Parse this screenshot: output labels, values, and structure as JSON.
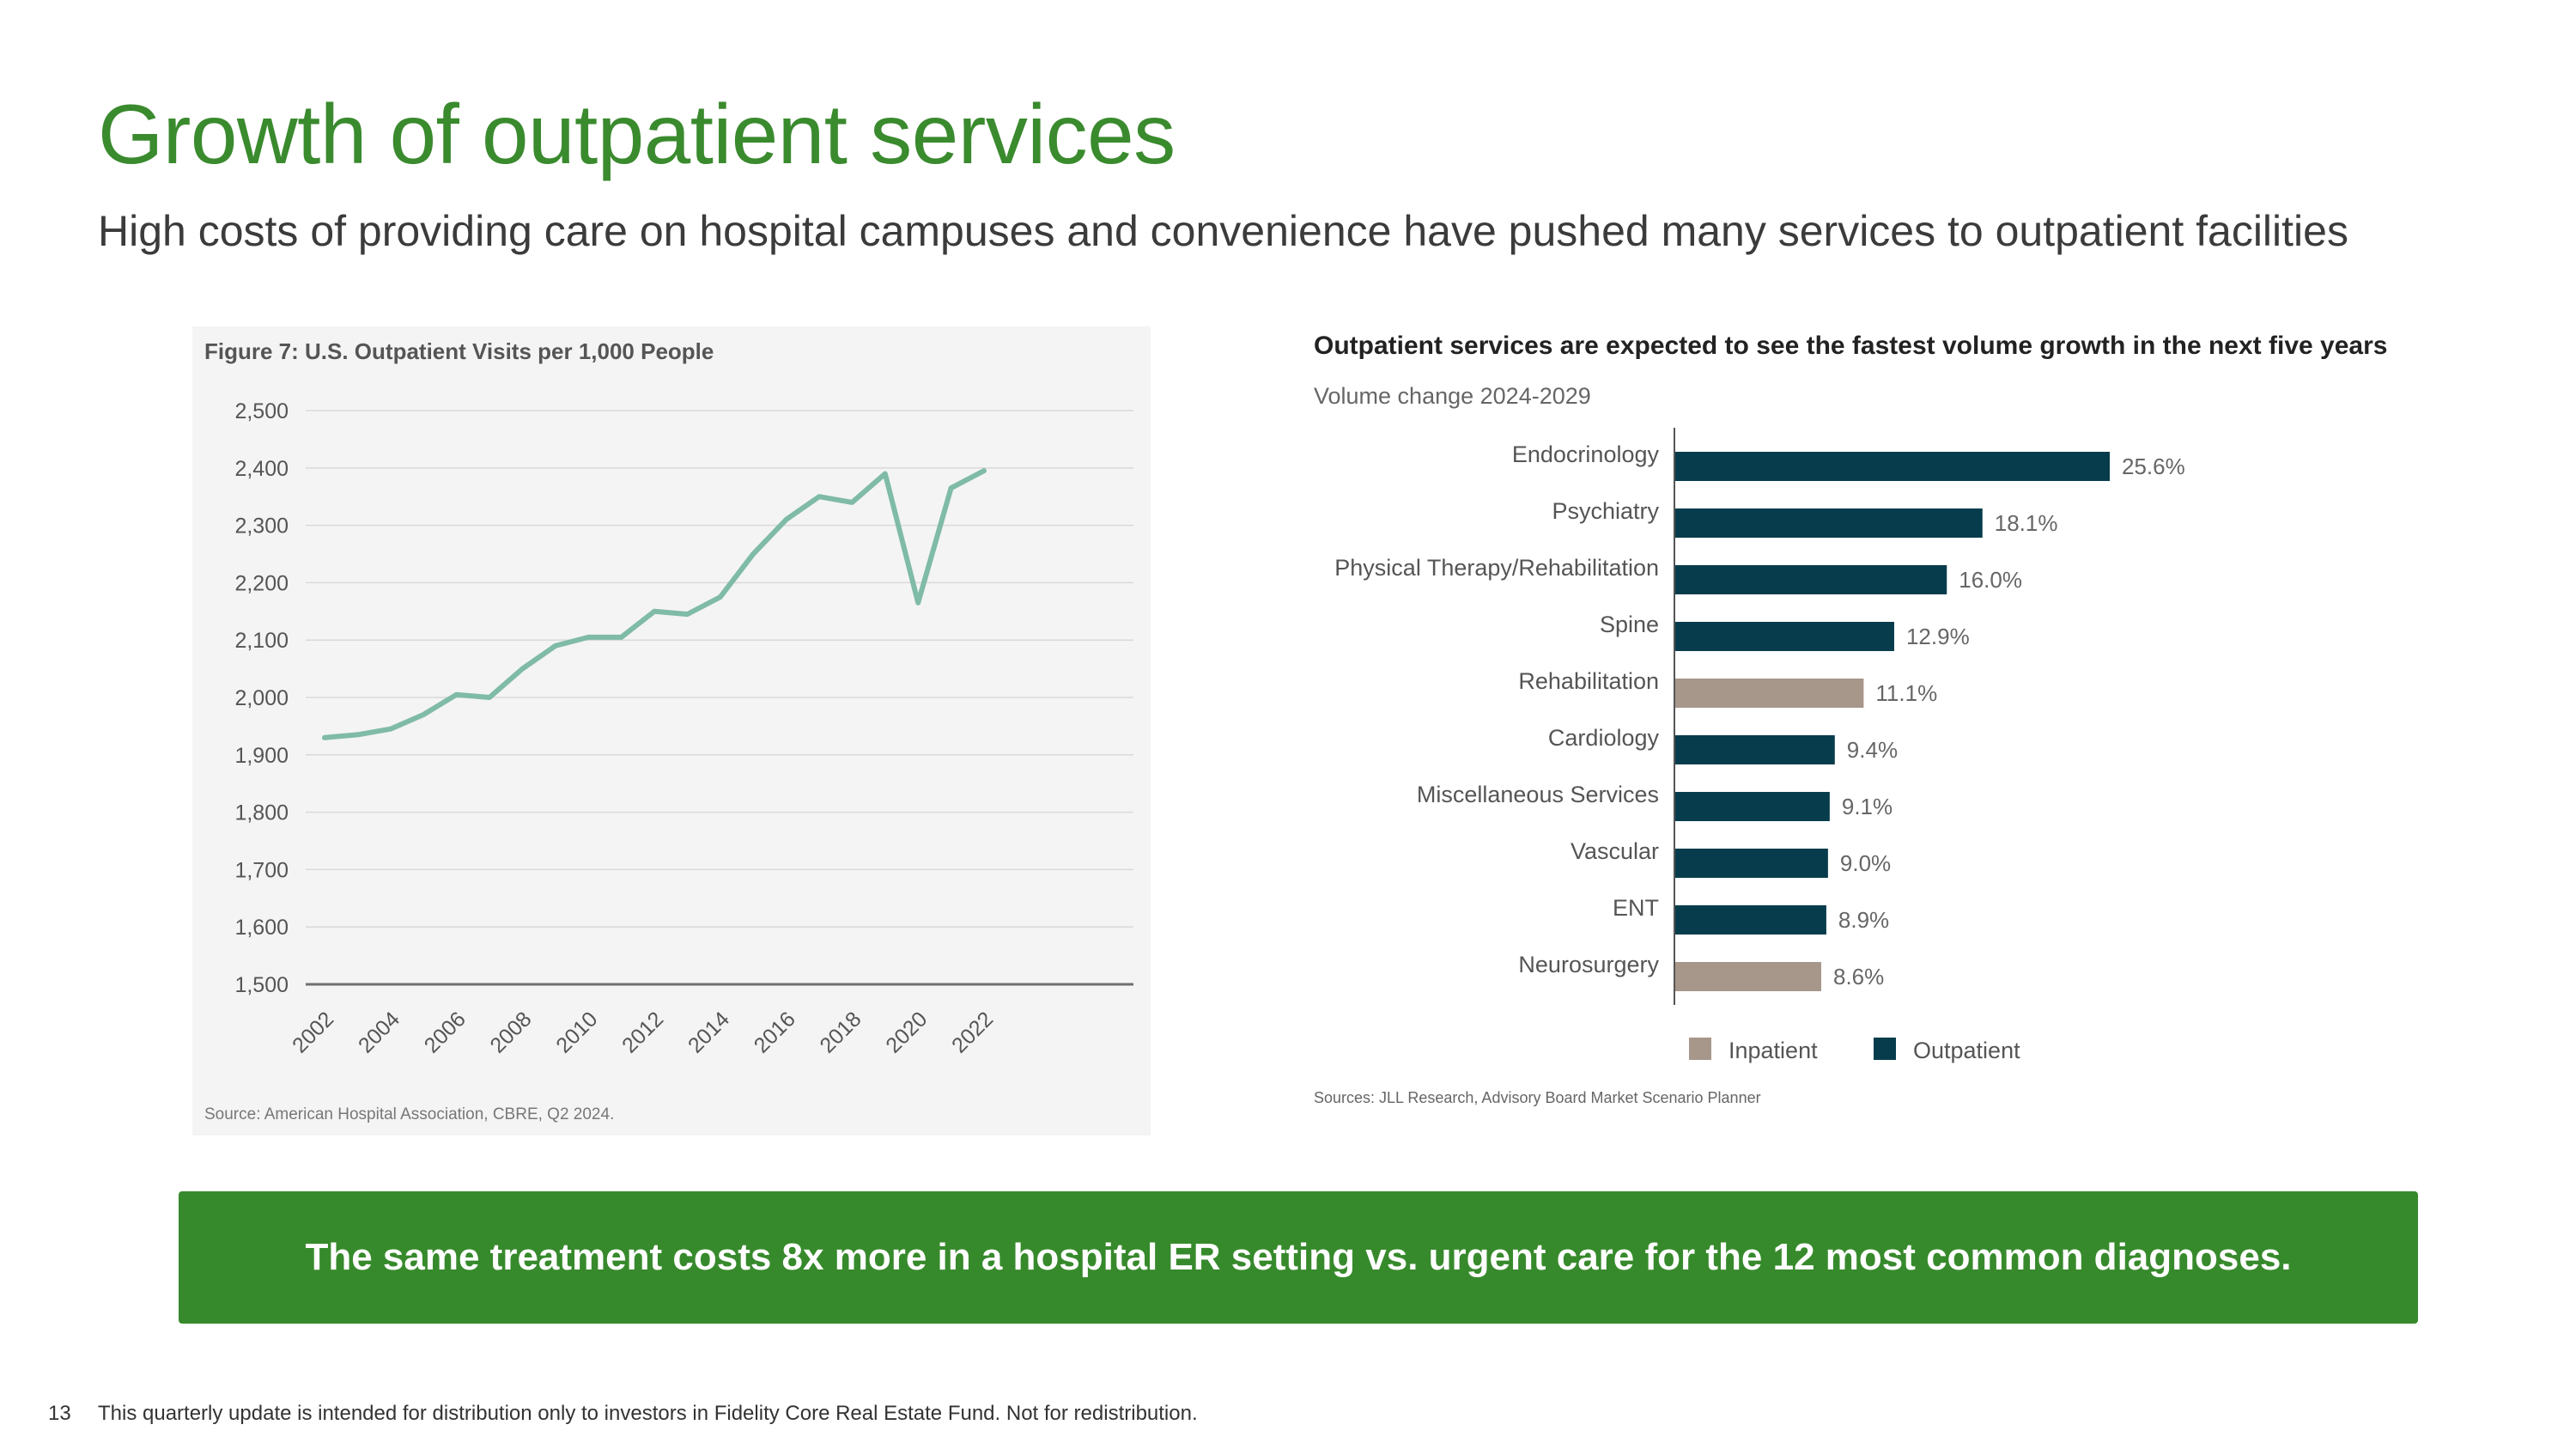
{
  "page": {
    "title": "Growth of outpatient services",
    "subtitle": "High costs of providing care on hospital campuses and convenience have pushed many services to outpatient facilities",
    "callout": "The same treatment costs 8x more in a hospital ER setting vs. urgent care for the 12 most common diagnoses.",
    "page_number": "13",
    "disclaimer": "This quarterly update is intended for distribution only to investors in Fidelity Core Real Estate Fund. Not for redistribution."
  },
  "colors": {
    "title": "#3a8a2e",
    "callout_bg": "#378a2c",
    "line": "#7fbba6",
    "outpatient": "#073c4c",
    "inpatient": "#a7968a",
    "panel_bg": "#f4f4f4"
  },
  "chart_data": [
    {
      "type": "line",
      "title": "Figure 7: U.S. Outpatient Visits per 1,000 People",
      "source": "Source: American Hospital Association, CBRE, Q2 2024.",
      "x": [
        2002,
        2003,
        2004,
        2005,
        2006,
        2007,
        2008,
        2009,
        2010,
        2011,
        2012,
        2013,
        2014,
        2015,
        2016,
        2017,
        2018,
        2019,
        2020,
        2021,
        2022
      ],
      "x_tick_labels": [
        "2002",
        "2004",
        "2006",
        "2008",
        "2010",
        "2012",
        "2014",
        "2016",
        "2018",
        "2020",
        "2022"
      ],
      "y": [
        1930,
        1935,
        1945,
        1970,
        2005,
        2000,
        2050,
        2090,
        2105,
        2105,
        2150,
        2145,
        2175,
        2250,
        2310,
        2350,
        2340,
        2390,
        2165,
        2365,
        2395
      ],
      "ylim": [
        1500,
        2500
      ],
      "y_ticks": [
        "1,500",
        "1,600",
        "1,700",
        "1,800",
        "1,900",
        "2,000",
        "2,100",
        "2,200",
        "2,300",
        "2,400",
        "2,500"
      ],
      "grid": true
    },
    {
      "type": "bar",
      "orientation": "horizontal",
      "title": "Outpatient services are expected to see the fastest volume growth in the next five years",
      "subtitle": "Volume change 2024-2029",
      "source": "Sources: JLL Research, Advisory Board Market Scenario Planner",
      "categories": [
        "Endocrinology",
        "Psychiatry",
        "Physical Therapy/Rehabilitation",
        "Spine",
        "Rehabilitation",
        "Cardiology",
        "Miscellaneous Services",
        "Vascular",
        "ENT",
        "Neurosurgery"
      ],
      "values": [
        25.6,
        18.1,
        16.0,
        12.9,
        11.1,
        9.4,
        9.1,
        9.0,
        8.9,
        8.6
      ],
      "value_labels": [
        "25.6%",
        "18.1%",
        "16.0%",
        "12.9%",
        "11.1%",
        "9.4%",
        "9.1%",
        "9.0%",
        "8.9%",
        "8.6%"
      ],
      "groups": [
        "Outpatient",
        "Outpatient",
        "Outpatient",
        "Outpatient",
        "Inpatient",
        "Outpatient",
        "Outpatient",
        "Outpatient",
        "Outpatient",
        "Inpatient"
      ],
      "legend": [
        "Inpatient",
        "Outpatient"
      ],
      "legend_placement": "bottom"
    }
  ]
}
